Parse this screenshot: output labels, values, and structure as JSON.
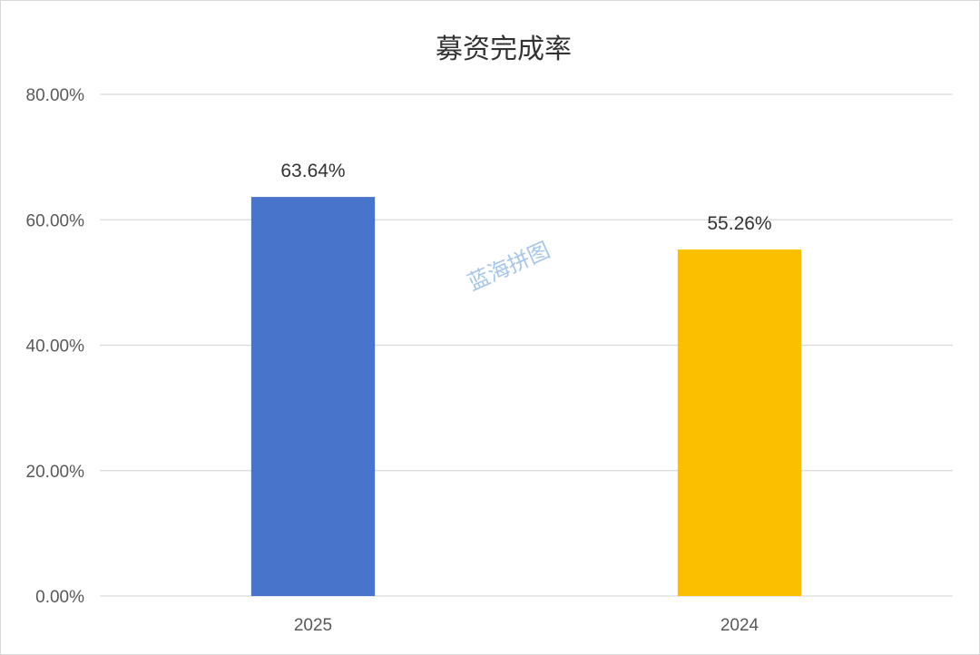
{
  "chart_data": {
    "type": "bar",
    "title": "募资完成率",
    "categories": [
      "2025",
      "2024"
    ],
    "values": [
      63.64,
      55.26
    ],
    "data_labels": [
      "63.64%",
      "55.26%"
    ],
    "bar_colors": [
      "#4874cc",
      "#fcbf00"
    ],
    "ylim": [
      0,
      80
    ],
    "y_ticks": [
      0,
      20,
      40,
      60,
      80
    ],
    "y_tick_labels": [
      "0.00%",
      "20.00%",
      "40.00%",
      "60.00%",
      "80.00%"
    ],
    "xlabel": "",
    "ylabel": "",
    "grid": true,
    "legend": "none",
    "gridline_color": "#d9d9d9"
  },
  "watermark": "蓝海拼图"
}
